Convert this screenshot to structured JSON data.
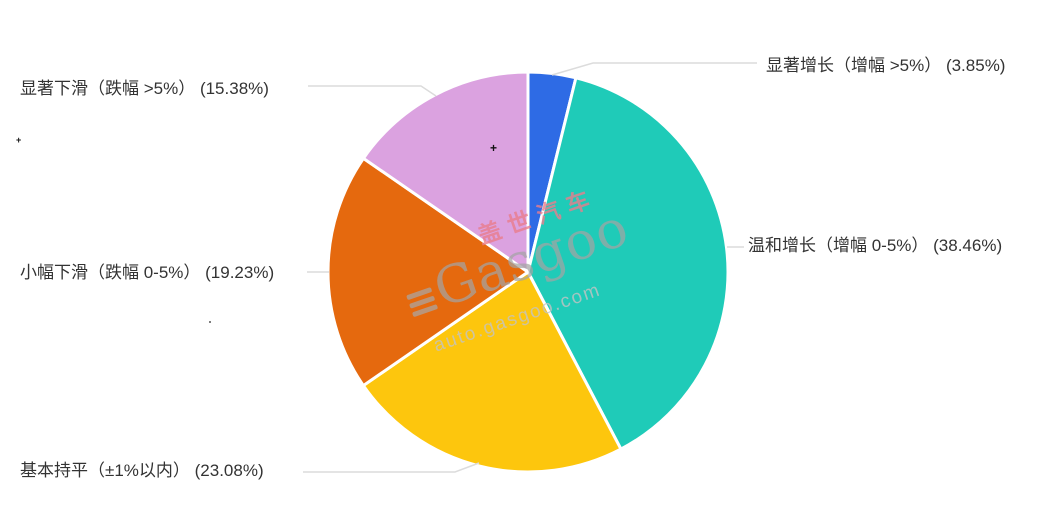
{
  "chart_data": {
    "type": "pie",
    "title": "",
    "legend": "none",
    "label_style": "outside labels with leader lines",
    "start_angle_deg": -90,
    "clockwise": true,
    "unit": "%",
    "slices": [
      {
        "key": "significant-growth",
        "name": "显著增长（增幅 >5%）",
        "value": 3.85,
        "display": "显著增长（增幅 >5%） (3.85%)",
        "color": "#2e6be5"
      },
      {
        "key": "moderate-growth",
        "name": "温和增长（增幅 0-5%）",
        "value": 38.46,
        "display": "温和增长（增幅 0-5%） (38.46%)",
        "color": "#1fcbb8"
      },
      {
        "key": "flat",
        "name": "基本持平（±1%以内）",
        "value": 23.08,
        "display": "基本持平（±1%以内） (23.08%)",
        "color": "#fdc60d"
      },
      {
        "key": "slight-decline",
        "name": "小幅下滑（跌幅 0-5%）",
        "value": 19.23,
        "display": "小幅下滑（跌幅 0-5%） (19.23%)",
        "color": "#e5690e"
      },
      {
        "key": "significant-decline",
        "name": "显著下滑（跌幅 >5%）",
        "value": 15.38,
        "display": "显著下滑（跌幅 >5%） (15.38%)",
        "color": "#dba2e0"
      }
    ]
  },
  "watermark": {
    "cn": "盖世汽车",
    "en": "Gasgoo",
    "url": "auto.gasgoo.com"
  },
  "colors": {
    "background": "#ffffff",
    "leader_line": "#dcdcdc",
    "label_text": "#333333",
    "slice_border": "#ffffff"
  }
}
